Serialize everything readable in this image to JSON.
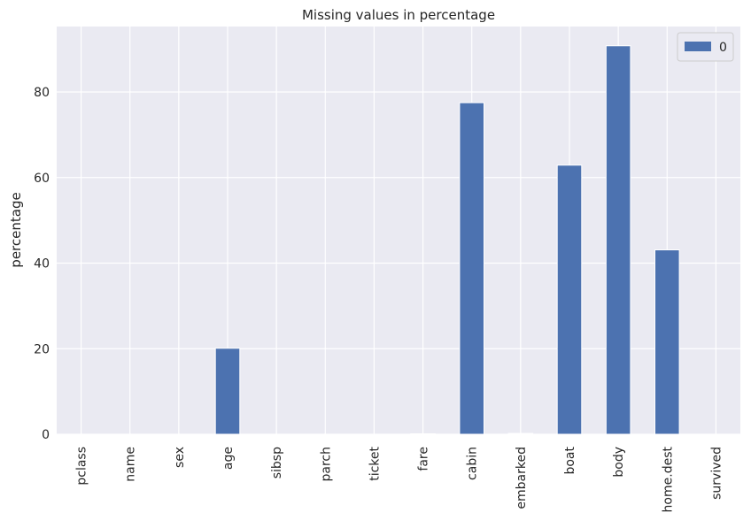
{
  "chart_data": {
    "type": "bar",
    "title": "Missing values in percentage",
    "xlabel": "",
    "ylabel": "percentage",
    "categories": [
      "pclass",
      "name",
      "sex",
      "age",
      "sibsp",
      "parch",
      "ticket",
      "fare",
      "cabin",
      "embarked",
      "boat",
      "body",
      "home.dest",
      "survived"
    ],
    "series": [
      {
        "name": "0",
        "values": [
          0,
          0,
          0,
          20.1,
          0,
          0,
          0,
          0.1,
          77.5,
          0.2,
          62.9,
          90.8,
          43.1,
          0
        ]
      }
    ],
    "yticks": [
      0,
      20,
      40,
      60,
      80
    ],
    "ylim": [
      0,
      95.3
    ],
    "grid": true,
    "legend_position": "top-right",
    "colors": {
      "bar": "#4c72b0",
      "background": "#eaeaf2",
      "grid": "#ffffff"
    }
  }
}
